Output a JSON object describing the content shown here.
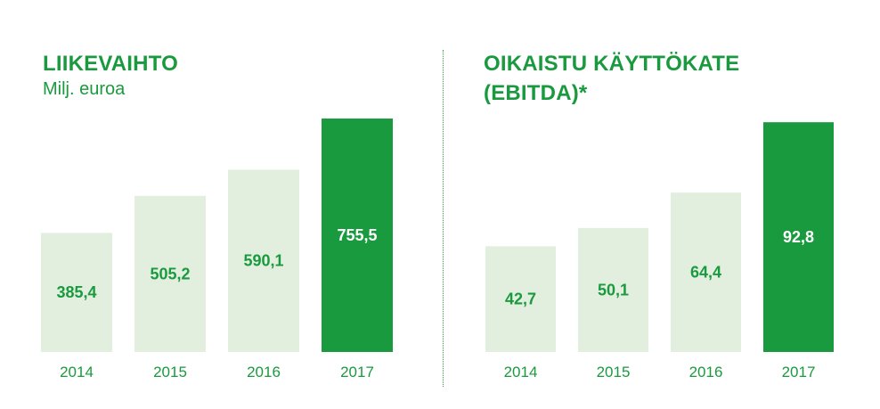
{
  "colors": {
    "accent": "#1a9a3e",
    "bar_light": "#e2efdf",
    "bar_highlight": "#1a9a3e",
    "label_on_light": "#1a9a3e",
    "label_on_dark": "#ffffff"
  },
  "chart_data": [
    {
      "type": "bar",
      "title": "LIIKEVAIHTO",
      "subtitle": "Milj. euroa",
      "categories": [
        "2014",
        "2015",
        "2016",
        "2017"
      ],
      "values": [
        385.4,
        505.2,
        590.1,
        755.5
      ],
      "value_labels": [
        "385,4",
        "505,2",
        "590,1",
        "755,5"
      ],
      "highlight": "2017",
      "ylim": [
        0,
        770
      ],
      "grid": false
    },
    {
      "type": "bar",
      "title": "OIKAISTU KÄYTTÖKATE (EBITDA)*",
      "title_lines": [
        "OIKAISTU KÄYTTÖKATE",
        "(EBITDA)*"
      ],
      "categories": [
        "2014",
        "2015",
        "2016",
        "2017"
      ],
      "values": [
        42.7,
        50.1,
        64.4,
        92.8
      ],
      "value_labels": [
        "42,7",
        "50,1",
        "64,4",
        "92,8"
      ],
      "highlight": "2017",
      "ylim": [
        0,
        94.3
      ],
      "grid": false
    }
  ]
}
